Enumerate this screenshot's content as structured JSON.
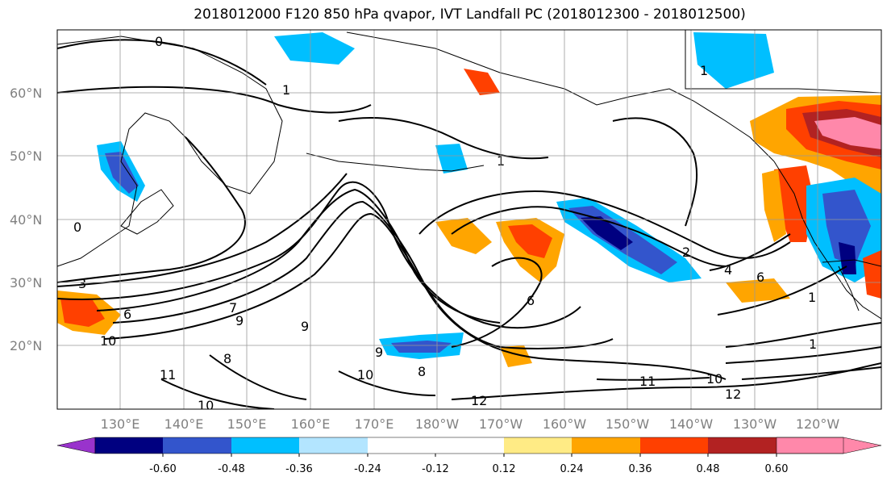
{
  "title": "2018012000 F120 850 hPa qvapor, IVT Landfall PC (2018012300 - 2018012500)",
  "lat_labels": [
    "60°N",
    "50°N",
    "40°N",
    "30°N",
    "20°N"
  ],
  "lon_labels": [
    "130°E",
    "140°E",
    "150°E",
    "160°E",
    "170°E",
    "180°W",
    "170°W",
    "160°W",
    "150°W",
    "140°W",
    "130°W",
    "120°W"
  ],
  "colorbar": {
    "colors": [
      "#9933cc",
      "#000080",
      "#3355cc",
      "#00bfff",
      "#b3e5ff",
      "#ffffff",
      "#ffeb85",
      "#ffa500",
      "#ff4000",
      "#b22222",
      "#ff88aa"
    ],
    "tick_labels": [
      "-0.60",
      "-0.48",
      "-0.36",
      "-0.24",
      "-0.12",
      "0.12",
      "0.24",
      "0.36",
      "0.48",
      "0.60"
    ]
  },
  "contour_labels": [
    "0",
    "1",
    "3",
    "6",
    "7",
    "9",
    "10",
    "11",
    "8",
    "9",
    "10",
    "6",
    "9",
    "8",
    "10",
    "1",
    "1",
    "2",
    "4",
    "6",
    "0",
    "1",
    "10",
    "12",
    "11",
    "12",
    "1"
  ]
}
